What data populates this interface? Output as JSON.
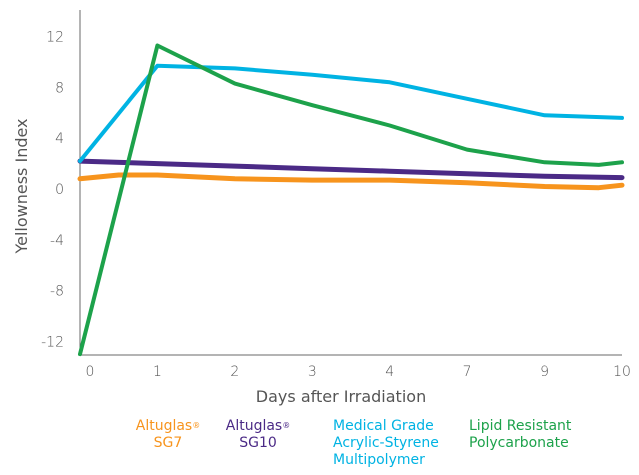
{
  "chart_data": {
    "type": "line",
    "title": "",
    "xlabel": "Days after Irradiation",
    "ylabel": "Yellowness Index",
    "categories": [
      "0",
      "1",
      "2",
      "3",
      "4",
      "7",
      "9",
      "10"
    ],
    "yticks": [
      "12",
      "8",
      "4",
      "0",
      "-4",
      "-8",
      "-12"
    ],
    "ylim": [
      -13,
      14
    ],
    "grid": false,
    "legend_position": "bottom",
    "series": [
      {
        "name": "Altuglas® SG7",
        "label_lines": [
          "Altuglas",
          "SG7"
        ],
        "color": "#F7941D",
        "x": [
          0,
          0.5,
          1,
          2,
          3,
          4,
          7,
          9,
          9.7,
          10
        ],
        "values": [
          0.8,
          1.1,
          1.1,
          0.8,
          0.7,
          0.7,
          0.5,
          0.2,
          0.1,
          0.3
        ]
      },
      {
        "name": "Altuglas® SG10",
        "label_lines": [
          "Altuglas",
          "SG10"
        ],
        "color": "#4B2A86",
        "x": [
          0,
          1,
          2,
          3,
          4,
          7,
          9,
          10
        ],
        "values": [
          2.2,
          2.0,
          1.8,
          1.6,
          1.4,
          1.2,
          1.0,
          0.9
        ]
      },
      {
        "name": "Medical Grade Acrylic-Styrene Multipolymer",
        "label_lines": [
          "Medical Grade",
          "Acrylic-Styrene",
          "Multipolymer"
        ],
        "color": "#00B3E3",
        "x": [
          0,
          1,
          2,
          3,
          4,
          7,
          9,
          10
        ],
        "values": [
          2.2,
          9.7,
          9.5,
          9.0,
          8.4,
          7.1,
          5.8,
          5.6
        ]
      },
      {
        "name": "Lipid Resistant Polycarbonate",
        "label_lines": [
          "Lipid Resistant",
          "Polycarbonate"
        ],
        "color": "#1DA24B",
        "x": [
          0,
          1,
          2,
          3,
          4,
          7,
          9,
          9.7,
          10
        ],
        "values": [
          -13.0,
          11.3,
          8.3,
          6.6,
          5.0,
          3.1,
          2.1,
          1.9,
          2.1
        ]
      }
    ],
    "legend_sup": "®"
  }
}
